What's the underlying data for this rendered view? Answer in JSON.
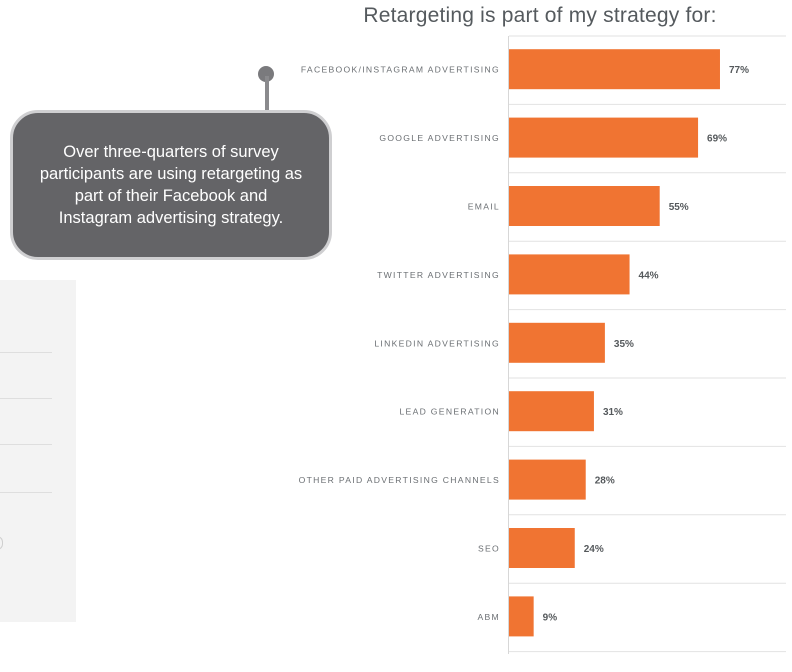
{
  "callout": {
    "text": "Over three-quarters of survey participants are using retargeting as part of their Facebook and Instagram advertising strategy."
  },
  "chart_data": {
    "type": "bar",
    "orientation": "horizontal",
    "title": "Retargeting is part of my strategy for:",
    "categories": [
      "FACEBOOK/INSTAGRAM ADVERTISING",
      "GOOGLE ADVERTISING",
      "EMAIL",
      "TWITTER ADVERTISING",
      "LINKEDIN ADVERTISING",
      "LEAD GENERATION",
      "OTHER PAID ADVERTISING CHANNELS",
      "SEO",
      "ABM"
    ],
    "values": [
      77,
      69,
      55,
      44,
      35,
      31,
      28,
      24,
      9
    ],
    "value_labels": [
      "77%",
      "69%",
      "55%",
      "44%",
      "35%",
      "31%",
      "28%",
      "24%",
      "9%"
    ],
    "unit": "%",
    "xlim": [
      0,
      100
    ],
    "grid": true,
    "colors": {
      "bar": "#f07432",
      "label": "#6b6f73",
      "value": "#55595c",
      "grid": "#e2e2e2"
    }
  }
}
